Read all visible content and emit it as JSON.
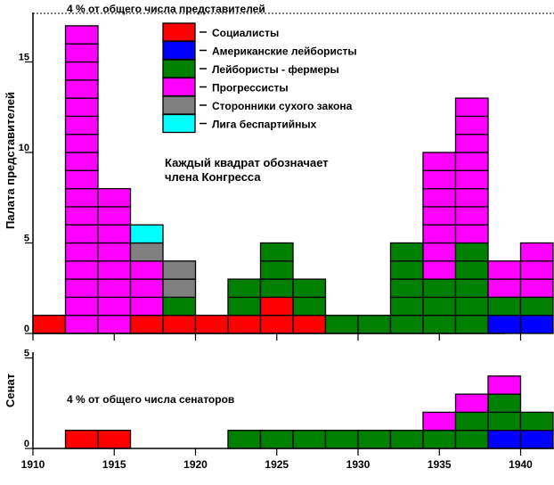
{
  "chart_data": {
    "type": "bar",
    "title": "",
    "xlabel": "",
    "x_ticks": [
      1910,
      1915,
      1920,
      1925,
      1930,
      1935,
      1940
    ],
    "xlim": [
      1910,
      1943
    ],
    "house": {
      "ylabel": "Палата представителей",
      "y_ticks": [
        0,
        5,
        10,
        15
      ],
      "threshold_label": "4 % от общего числа представителей",
      "annotation": [
        "Каждый квадрат обозначает",
        "члена Конгресса"
      ],
      "series": [
        {
          "name": "Социалисты",
          "color": "#ff0000",
          "x": [
            1911,
            1913,
            1915,
            1917,
            1919,
            1921,
            1923,
            1925,
            1927,
            1929,
            1931,
            1933,
            1935,
            1937,
            1939,
            1941
          ],
          "values": [
            1,
            0,
            0,
            1,
            1,
            1,
            1,
            2,
            1,
            0,
            0,
            0,
            0,
            0,
            0,
            0
          ]
        },
        {
          "name": "Американские лейбористы",
          "color": "#0000ff",
          "x": [
            1911,
            1913,
            1915,
            1917,
            1919,
            1921,
            1923,
            1925,
            1927,
            1929,
            1931,
            1933,
            1935,
            1937,
            1939,
            1941
          ],
          "values": [
            0,
            0,
            0,
            0,
            0,
            0,
            0,
            0,
            0,
            0,
            0,
            0,
            0,
            0,
            1,
            1
          ]
        },
        {
          "name": "Лейбористы - фермеры",
          "color": "#008000",
          "x": [
            1911,
            1913,
            1915,
            1917,
            1919,
            1921,
            1923,
            1925,
            1927,
            1929,
            1931,
            1933,
            1935,
            1937,
            1939,
            1941
          ],
          "values": [
            0,
            0,
            0,
            0,
            1,
            0,
            2,
            3,
            2,
            1,
            1,
            5,
            3,
            5,
            1,
            1
          ]
        },
        {
          "name": "Прогрессисты",
          "color": "#ff00ff",
          "x": [
            1911,
            1913,
            1915,
            1917,
            1919,
            1921,
            1923,
            1925,
            1927,
            1929,
            1931,
            1933,
            1935,
            1937,
            1939,
            1941
          ],
          "values": [
            0,
            17,
            8,
            3,
            0,
            0,
            0,
            0,
            0,
            0,
            0,
            0,
            7,
            8,
            2,
            3
          ]
        },
        {
          "name": "Сторонники сухого закона",
          "color": "#808080",
          "x": [
            1911,
            1913,
            1915,
            1917,
            1919,
            1921,
            1923,
            1925,
            1927,
            1929,
            1931,
            1933,
            1935,
            1937,
            1939,
            1941
          ],
          "values": [
            0,
            0,
            0,
            1,
            2,
            0,
            0,
            0,
            0,
            0,
            0,
            0,
            0,
            0,
            0,
            0
          ]
        },
        {
          "name": "Лига беспартийных",
          "color": "#00ffff",
          "x": [
            1911,
            1913,
            1915,
            1917,
            1919,
            1921,
            1923,
            1925,
            1927,
            1929,
            1931,
            1933,
            1935,
            1937,
            1939,
            1941
          ],
          "values": [
            0,
            0,
            0,
            1,
            0,
            0,
            0,
            0,
            0,
            0,
            0,
            0,
            0,
            0,
            0,
            0
          ]
        }
      ]
    },
    "senate": {
      "ylabel": "Сенат",
      "y_ticks": [
        0,
        5
      ],
      "threshold_label": "4 % от общего числа сенаторов",
      "series": [
        {
          "name": "Социалисты",
          "color": "#ff0000",
          "x": [
            1913,
            1915,
            1917,
            1919,
            1921,
            1923,
            1925,
            1927,
            1929,
            1931,
            1933,
            1935,
            1937,
            1939,
            1941
          ],
          "values": [
            1,
            1,
            0,
            0,
            0,
            0,
            0,
            0,
            0,
            0,
            0,
            0,
            0,
            0,
            0
          ]
        },
        {
          "name": "Американские лейбористы",
          "color": "#0000ff",
          "x": [
            1913,
            1915,
            1917,
            1919,
            1921,
            1923,
            1925,
            1927,
            1929,
            1931,
            1933,
            1935,
            1937,
            1939,
            1941
          ],
          "values": [
            0,
            0,
            0,
            0,
            0,
            0,
            0,
            0,
            0,
            0,
            0,
            0,
            0,
            1,
            1
          ]
        },
        {
          "name": "Лейбористы - фермеры",
          "color": "#008000",
          "x": [
            1913,
            1915,
            1917,
            1919,
            1921,
            1923,
            1925,
            1927,
            1929,
            1931,
            1933,
            1935,
            1937,
            1939,
            1941
          ],
          "values": [
            0,
            0,
            0,
            0,
            0,
            1,
            1,
            1,
            1,
            1,
            1,
            1,
            2,
            2,
            1
          ]
        },
        {
          "name": "Прогрессисты",
          "color": "#ff00ff",
          "x": [
            1913,
            1915,
            1917,
            1919,
            1921,
            1923,
            1925,
            1927,
            1929,
            1931,
            1933,
            1935,
            1937,
            1939,
            1941
          ],
          "values": [
            0,
            0,
            0,
            0,
            0,
            0,
            0,
            0,
            0,
            0,
            0,
            1,
            1,
            1,
            0
          ]
        }
      ]
    },
    "legend": {
      "position": "top-center"
    }
  }
}
